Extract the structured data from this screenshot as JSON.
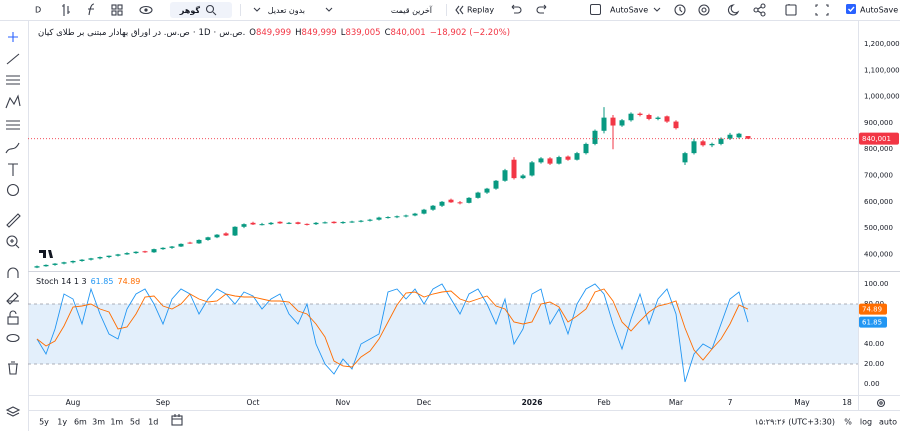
{
  "toolbar": {
    "interval": "D",
    "symbol_search": "گوهر",
    "adjustment": "بدون تعدیل",
    "price_source": "آخرین قیمت",
    "replay": "Replay",
    "autosave": "AutoSave",
    "autosave_right": "AutoSave"
  },
  "header": {
    "symbol": "ص.س. در اوراق بهادار مبتنی بر طلای کیان",
    "interval": "1D",
    "exchange": "ص.س.",
    "ohlc": [
      {
        "label": "O",
        "value": "849,999"
      },
      {
        "label": "H",
        "value": "849,999"
      },
      {
        "label": "L",
        "value": "839,005"
      },
      {
        "label": "C",
        "value": "840,001"
      }
    ],
    "change": "−18,902 (−2.20%)"
  },
  "bottom_bar": {
    "ranges": [
      "5y",
      "1y",
      "6m",
      "3m",
      "1m",
      "5d",
      "1d"
    ],
    "clock": "۱۵:۲۹:۲۶ (UTC+3:30)",
    "percent": "%",
    "log": "log",
    "auto": "auto"
  },
  "chart_data": {
    "type": "candlestick",
    "colors": {
      "up": "#089981",
      "down": "#f23645"
    },
    "categories": [
      null,
      null,
      null,
      null,
      "Aug",
      null,
      null,
      null,
      null,
      null,
      null,
      null,
      null,
      null,
      "Sep",
      null,
      null,
      null,
      null,
      null,
      null,
      null,
      null,
      null,
      "Oct",
      null,
      null,
      null,
      null,
      null,
      null,
      null,
      null,
      null,
      "Nov",
      null,
      null,
      null,
      null,
      null,
      null,
      null,
      null,
      "Dec",
      null,
      null,
      null,
      null,
      null,
      null,
      null,
      null,
      null,
      null,
      null,
      "2026",
      null,
      null,
      null,
      null,
      null,
      null,
      null,
      "Feb",
      null,
      null,
      null,
      null,
      null,
      null,
      null,
      "Mar",
      null,
      null,
      null,
      null,
      null,
      "7",
      null,
      null,
      null,
      null,
      null,
      null,
      null,
      "May",
      null,
      null,
      null,
      null,
      "18"
    ],
    "ohlc": [
      [
        350000,
        358000,
        348000,
        355000
      ],
      [
        355000,
        362000,
        353000,
        360000
      ],
      [
        360000,
        367000,
        357000,
        365000
      ],
      [
        365000,
        372000,
        362000,
        370000
      ],
      [
        370000,
        377000,
        366000,
        375000
      ],
      [
        375000,
        382000,
        372000,
        380000
      ],
      [
        380000,
        387000,
        377000,
        385000
      ],
      [
        385000,
        392000,
        381000,
        390000
      ],
      [
        390000,
        396000,
        386000,
        395000
      ],
      [
        395000,
        402000,
        392000,
        400000
      ],
      [
        400000,
        408000,
        398000,
        405000
      ],
      [
        405000,
        412000,
        402000,
        410000
      ],
      [
        412000,
        414000,
        406000,
        408000
      ],
      [
        408000,
        422000,
        406000,
        420000
      ],
      [
        420000,
        427000,
        417000,
        425000
      ],
      [
        425000,
        432000,
        421000,
        430000
      ],
      [
        430000,
        442000,
        428000,
        440000
      ],
      [
        445000,
        448000,
        440000,
        442000
      ],
      [
        442000,
        457000,
        440000,
        455000
      ],
      [
        455000,
        467000,
        452000,
        465000
      ],
      [
        465000,
        477000,
        462000,
        475000
      ],
      [
        480000,
        484000,
        470000,
        472000
      ],
      [
        472000,
        507000,
        470000,
        505000
      ],
      [
        505000,
        518000,
        500000,
        515000
      ],
      [
        520000,
        524000,
        512000,
        514000
      ],
      [
        514000,
        520000,
        510000,
        515000
      ],
      [
        515000,
        523000,
        512000,
        520000
      ],
      [
        524000,
        526000,
        516000,
        518000
      ],
      [
        518000,
        523000,
        515000,
        520000
      ],
      [
        522000,
        524000,
        514000,
        516000
      ],
      [
        516000,
        518000,
        510000,
        515000
      ],
      [
        515000,
        523000,
        512000,
        520000
      ],
      [
        520000,
        525000,
        517000,
        522000
      ],
      [
        524000,
        526000,
        517000,
        519000
      ],
      [
        519000,
        526000,
        516000,
        523000
      ],
      [
        523000,
        528000,
        520000,
        525000
      ],
      [
        525000,
        531000,
        522000,
        528000
      ],
      [
        528000,
        535000,
        525000,
        532000
      ],
      [
        532000,
        543000,
        529000,
        540000
      ],
      [
        540000,
        545000,
        536000,
        542000
      ],
      [
        542000,
        548000,
        538000,
        545000
      ],
      [
        545000,
        551000,
        541000,
        548000
      ],
      [
        548000,
        558000,
        545000,
        555000
      ],
      [
        555000,
        573000,
        552000,
        570000
      ],
      [
        570000,
        588000,
        566000,
        585000
      ],
      [
        585000,
        603000,
        580000,
        600000
      ],
      [
        608000,
        612000,
        596000,
        598000
      ],
      [
        598000,
        603000,
        590000,
        596000
      ],
      [
        596000,
        618000,
        594000,
        615000
      ],
      [
        615000,
        638000,
        612000,
        635000
      ],
      [
        635000,
        653000,
        630000,
        650000
      ],
      [
        650000,
        683000,
        646000,
        680000
      ],
      [
        680000,
        725000,
        676000,
        720000
      ],
      [
        760000,
        770000,
        685000,
        690000
      ],
      [
        690000,
        705000,
        686000,
        700000
      ],
      [
        700000,
        755000,
        696000,
        750000
      ],
      [
        750000,
        770000,
        745000,
        765000
      ],
      [
        765000,
        770000,
        740000,
        745000
      ],
      [
        745000,
        775000,
        742000,
        770000
      ],
      [
        772000,
        776000,
        756000,
        760000
      ],
      [
        760000,
        790000,
        757000,
        785000
      ],
      [
        785000,
        825000,
        780000,
        820000
      ],
      [
        820000,
        875000,
        815000,
        870000
      ],
      [
        870000,
        960000,
        860000,
        920000
      ],
      [
        920000,
        930000,
        800000,
        890000
      ],
      [
        890000,
        915000,
        885000,
        910000
      ],
      [
        910000,
        940000,
        905000,
        935000
      ],
      [
        935000,
        940000,
        925000,
        930000
      ],
      [
        930000,
        935000,
        910000,
        915000
      ],
      [
        915000,
        925000,
        910000,
        920000
      ],
      [
        925000,
        928000,
        900000,
        905000
      ],
      [
        905000,
        910000,
        875000,
        880000
      ],
      [
        750000,
        790000,
        740000,
        785000
      ],
      [
        785000,
        840000,
        780000,
        830000
      ],
      [
        830000,
        835000,
        810000,
        815000
      ],
      [
        815000,
        825000,
        808000,
        820000
      ],
      [
        820000,
        845000,
        815000,
        840000
      ],
      [
        840000,
        862000,
        835000,
        855000
      ],
      [
        845000,
        862000,
        840000,
        858903
      ],
      [
        849999,
        849999,
        839005,
        840001
      ],
      null,
      null,
      null,
      null,
      null,
      null,
      null,
      null,
      null,
      null,
      null
    ],
    "last_label": "840,001",
    "ylim": [
      340700,
      1283600
    ],
    "yticks": [
      {
        "value": 1200000,
        "label": "1,200,000"
      },
      {
        "value": 1100000,
        "label": "1,100,000"
      },
      {
        "value": 1000000,
        "label": "1,000,000"
      },
      {
        "value": 900000,
        "label": "900,000"
      },
      {
        "value": 800000,
        "label": "800,000"
      },
      {
        "value": 700000,
        "label": "700,000"
      },
      {
        "value": 600000,
        "label": "600,000"
      },
      {
        "value": 500000,
        "label": "500,000"
      },
      {
        "value": 400000,
        "label": "400,000"
      }
    ],
    "indicator": {
      "type": "line",
      "title": "Stoch 14 1 3",
      "ylim": [
        -11,
        112
      ],
      "yticks": [
        {
          "value": 100,
          "label": "100.00"
        },
        {
          "value": 80,
          "label": "80.00"
        },
        {
          "value": 60,
          "label": "60.00"
        },
        {
          "value": 40,
          "label": "40.00"
        },
        {
          "value": 20,
          "label": "20.00"
        },
        {
          "value": 0,
          "label": "0.00"
        }
      ],
      "bands": [
        20,
        80
      ],
      "band_color": "#e3effb",
      "series": [
        {
          "color": "#2196f3",
          "value_label": "61.85",
          "values": [
            45,
            30,
            55,
            90,
            85,
            60,
            95,
            70,
            50,
            45,
            75,
            90,
            95,
            80,
            60,
            85,
            95,
            90,
            70,
            85,
            95,
            90,
            80,
            92,
            88,
            75,
            85,
            90,
            70,
            60,
            80,
            40,
            20,
            10,
            25,
            15,
            40,
            45,
            50,
            92,
            95,
            85,
            95,
            80,
            95,
            100,
            85,
            70,
            90,
            95,
            80,
            60,
            85,
            40,
            55,
            90,
            95,
            60,
            75,
            50,
            80,
            95,
            100,
            90,
            60,
            35,
            65,
            90,
            60,
            85,
            95,
            70,
            2,
            30,
            40,
            35,
            60,
            85,
            92,
            61.85,
            null,
            null,
            null,
            null,
            null,
            null,
            null,
            null,
            null,
            null,
            null
          ]
        },
        {
          "color": "#ff6d00",
          "value_label": "74.89",
          "values": [
            45,
            38,
            43,
            58,
            77,
            78,
            80,
            75,
            72,
            55,
            57,
            70,
            87,
            88,
            78,
            75,
            80,
            90,
            85,
            82,
            83,
            90,
            88,
            87,
            87,
            85,
            83,
            83,
            82,
            73,
            70,
            60,
            47,
            23,
            18,
            17,
            27,
            33,
            45,
            62,
            79,
            91,
            92,
            87,
            90,
            92,
            93,
            85,
            82,
            85,
            88,
            78,
            75,
            62,
            60,
            62,
            80,
            82,
            77,
            62,
            68,
            75,
            92,
            95,
            83,
            62,
            53,
            63,
            72,
            78,
            80,
            83,
            56,
            34,
            24,
            35,
            45,
            60,
            79,
            74.89,
            null,
            null,
            null,
            null,
            null,
            null,
            null,
            null,
            null,
            null,
            null
          ]
        }
      ]
    }
  }
}
